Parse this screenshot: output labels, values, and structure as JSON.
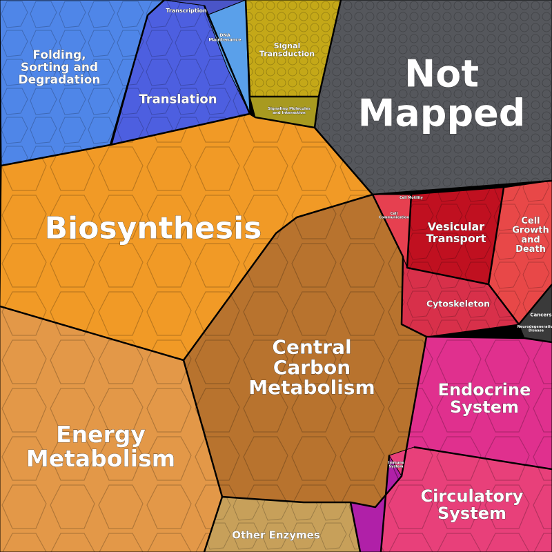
{
  "colors": {
    "folding": "#4f86e8",
    "translation": "#4d5fe0",
    "transcription": "#4a55c8",
    "dna": "#5aa0ea",
    "signal": "#c4a818",
    "signal_mol": "#a89a20",
    "not_mapped": "#55575c",
    "biosynthesis": "#f19a26",
    "biosynthesis_light": "#f7ad2a",
    "central_carbon": "#b8732e",
    "energy": "#e39848",
    "other_enzymes": "#c7a05a",
    "vesicular": "#c01020",
    "cell_growth": "#e84848",
    "cytoskeleton": "#d8304a",
    "cell_comm": "#e64050",
    "cancers": "#3a3a3a",
    "endocrine": "#e0308e",
    "circulatory": "#e8407a",
    "immune": "#b020a8",
    "border": "#000000"
  },
  "labels": {
    "transcription": "Transcription",
    "folding": [
      "Folding,",
      "Sorting and",
      "Degradation"
    ],
    "translation": "Translation",
    "dna": [
      "DNA",
      "Maintenance"
    ],
    "signal": [
      "Signal",
      "Transduction"
    ],
    "signal_mol": [
      "Signaling Molecules",
      "and Interaction"
    ],
    "not_mapped": [
      "Not",
      "Mapped"
    ],
    "biosynthesis": "Biosynthesis",
    "central_carbon": [
      "Central",
      "Carbon",
      "Metabolism"
    ],
    "energy": [
      "Energy",
      "Metabolism"
    ],
    "other_enzymes": "Other Enzymes",
    "vesicular": [
      "Vesicular",
      "Transport"
    ],
    "cell_growth": [
      "Cell",
      "Growth",
      "and",
      "Death"
    ],
    "cell_motility": "Cell Motility",
    "cell_comm": [
      "Cell",
      "Communication"
    ],
    "cytoskeleton": "Cytoskeleton",
    "cancers": "Cancers",
    "neuro": [
      "Neurodegenerative",
      "Disease"
    ],
    "endocrine": [
      "Endocrine",
      "System"
    ],
    "circulatory": [
      "Circulatory",
      "System"
    ],
    "immune": [
      "Immune",
      "System"
    ]
  }
}
